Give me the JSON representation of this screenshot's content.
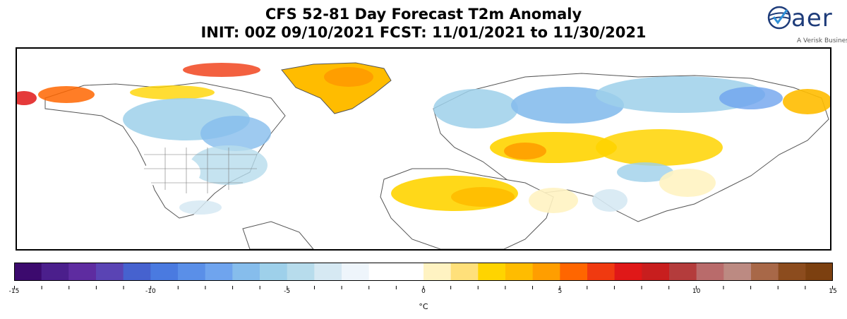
{
  "header": {
    "title_line1": "CFS 52-81 Day Forecast T2m Anomaly",
    "title_line2": "INIT: 00Z 09/10/2021     FCST: 11/01/2021 to 11/30/2021"
  },
  "logo": {
    "wordmark": "aer",
    "tagline": "A Verisk Business",
    "brand_color": "#1e3c7a"
  },
  "colorbar": {
    "unit": "°C",
    "min": -15,
    "max": 15,
    "step": 1,
    "tick_labels": [
      "-15",
      "-10",
      "-5",
      "0",
      "5",
      "10",
      "15"
    ],
    "colors": [
      "#3c0a6e",
      "#4b1f8c",
      "#5e2ca0",
      "#5a44b4",
      "#4662cf",
      "#4a7ae0",
      "#5a8fe8",
      "#6fa4ee",
      "#86bdec",
      "#9ed0ea",
      "#b7dcec",
      "#d6e9f3",
      "#eef5fb",
      "#ffffff",
      "#ffffff",
      "#fff3c2",
      "#ffe07a",
      "#ffd400",
      "#ffbc00",
      "#ff9e00",
      "#ff6600",
      "#f03a10",
      "#e01818",
      "#c81e1e",
      "#b43c3c",
      "#b96b6b",
      "#bc8a82",
      "#a86848",
      "#8c4c1e",
      "#7c4010"
    ]
  },
  "map": {
    "projection": "equirectangular",
    "regions": [
      {
        "name": "greenland",
        "anomaly": 4
      },
      {
        "name": "alaska-west",
        "anomaly": 7
      },
      {
        "name": "northern-canada",
        "anomaly": 2
      },
      {
        "name": "central-canada",
        "anomaly": -2
      },
      {
        "name": "eastern-united-states",
        "anomaly": -1
      },
      {
        "name": "central-russia",
        "anomaly": -3
      },
      {
        "name": "siberia-east",
        "anomaly": -2
      },
      {
        "name": "far-east-russia",
        "anomaly": 3
      },
      {
        "name": "central-asia",
        "anomaly": 3
      },
      {
        "name": "north-africa",
        "anomaly": 3
      },
      {
        "name": "tibet",
        "anomaly": -1
      }
    ]
  }
}
